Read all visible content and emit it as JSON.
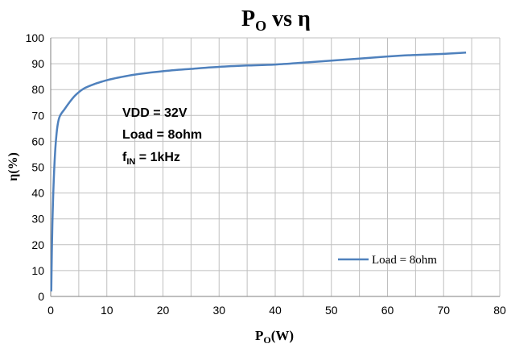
{
  "chart_data": {
    "type": "line",
    "title": {
      "main": "P",
      "sub": "O",
      "rest": " vs η"
    },
    "xlabel": {
      "main": "P",
      "sub": "O",
      "rest": "(W)"
    },
    "ylabel": "η(%)",
    "xlim": [
      0,
      80
    ],
    "ylim": [
      0,
      100
    ],
    "xticks": [
      0,
      10,
      20,
      30,
      40,
      50,
      60,
      70,
      80
    ],
    "yticks": [
      0,
      10,
      20,
      30,
      40,
      50,
      60,
      70,
      80,
      90,
      100
    ],
    "grid": true,
    "legend_position": "bottom-right",
    "annotations": [
      {
        "text": "VDD = 32V"
      },
      {
        "text": "Load = 8ohm"
      },
      {
        "main": "f",
        "sub": "IN",
        "rest": " = 1kHz"
      }
    ],
    "series": [
      {
        "name": "Load = 8ohm",
        "color": "#4f81bd",
        "x": [
          0.1,
          0.3,
          0.6,
          1.0,
          1.5,
          2.5,
          3.5,
          4.5,
          6,
          8,
          10,
          12,
          15,
          20,
          25,
          30,
          35,
          40,
          45,
          50,
          55,
          60,
          65,
          70,
          74
        ],
        "y": [
          2,
          28,
          48,
          62,
          69,
          72.5,
          75.5,
          78,
          80.5,
          82.3,
          83.6,
          84.6,
          85.8,
          87.1,
          88,
          88.8,
          89.3,
          89.7,
          90.4,
          91.2,
          92,
          92.8,
          93.4,
          93.8,
          94.3
        ]
      }
    ]
  }
}
